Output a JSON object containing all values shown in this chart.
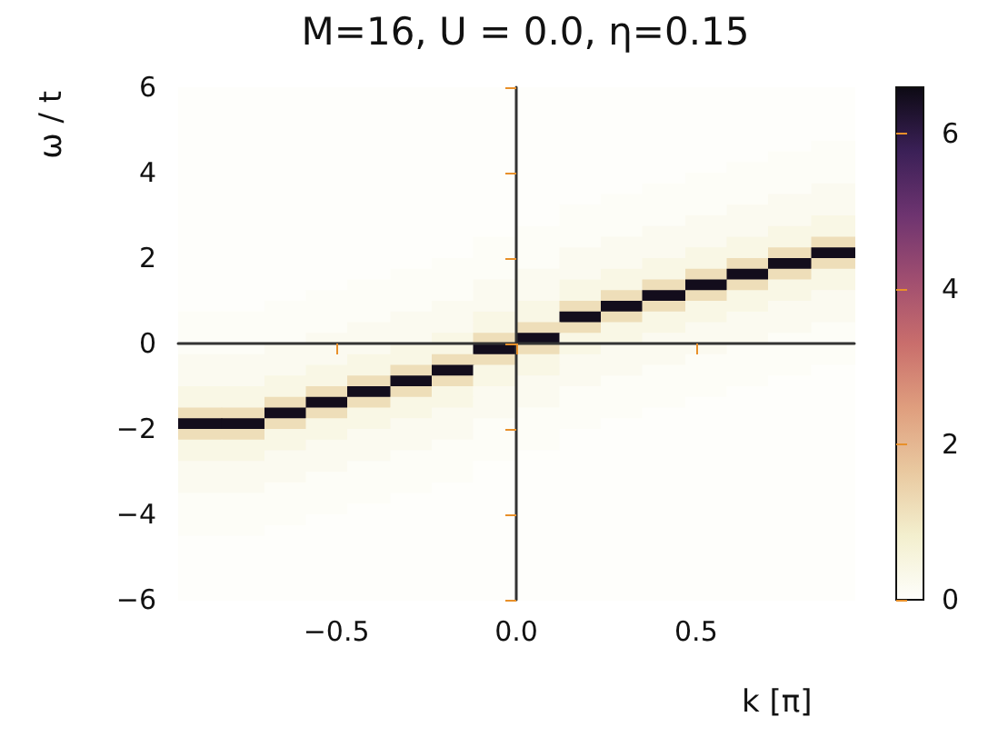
{
  "chart_data": {
    "type": "heatmap",
    "title": "M=16, U = 0.0, η=0.15",
    "xlabel": "k [π]",
    "ylabel": "ω / t",
    "x": [
      -0.88,
      -0.76,
      -0.64,
      -0.53,
      -0.41,
      -0.29,
      -0.18,
      -0.06,
      0.06,
      0.18,
      0.29,
      0.41,
      0.53,
      0.64,
      0.76,
      0.88
    ],
    "cells": [
      [
        0,
        0,
        0,
        0,
        0,
        0,
        0,
        0,
        0,
        0,
        0,
        0,
        0,
        0,
        0,
        0
      ],
      [
        0,
        0,
        0,
        0,
        0,
        0,
        0,
        0,
        0,
        0,
        0,
        0,
        0,
        0,
        0,
        0
      ],
      [
        0,
        0,
        0,
        0,
        0,
        0,
        0,
        0,
        0,
        0,
        0,
        0,
        0,
        0,
        0,
        0
      ],
      [
        0,
        0,
        0,
        0,
        0,
        0,
        0,
        0,
        0,
        0,
        0,
        0,
        0,
        0,
        0,
        0
      ],
      [
        0,
        0,
        0,
        0,
        0,
        0,
        0,
        0,
        0,
        0,
        0,
        0,
        0,
        0,
        0,
        0
      ],
      [
        0,
        0,
        0,
        0,
        0,
        0,
        0,
        0,
        0,
        0,
        0,
        0,
        0,
        0,
        0,
        0.08
      ],
      [
        0,
        0,
        0,
        0,
        0,
        0,
        0,
        0,
        0,
        0,
        0,
        0,
        0,
        0,
        0.08,
        0.08
      ],
      [
        0,
        0,
        0,
        0,
        0,
        0,
        0,
        0,
        0,
        0,
        0,
        0,
        0,
        0.08,
        0.08,
        0.08
      ],
      [
        0,
        0,
        0,
        0,
        0,
        0,
        0,
        0,
        0,
        0,
        0,
        0,
        0.08,
        0.08,
        0.08,
        0.08
      ],
      [
        0,
        0,
        0,
        0,
        0,
        0,
        0,
        0,
        0,
        0,
        0,
        0.08,
        0.08,
        0.08,
        0.08,
        0.2
      ],
      [
        0,
        0,
        0,
        0,
        0,
        0,
        0,
        0,
        0,
        0,
        0.08,
        0.08,
        0.08,
        0.08,
        0.2,
        0.2
      ],
      [
        0,
        0,
        0,
        0,
        0,
        0,
        0,
        0,
        0,
        0.08,
        0.08,
        0.08,
        0.08,
        0.2,
        0.2,
        0.2
      ],
      [
        0,
        0,
        0,
        0,
        0,
        0,
        0,
        0,
        0,
        0.08,
        0.08,
        0.08,
        0.2,
        0.2,
        0.2,
        0.4
      ],
      [
        0,
        0,
        0,
        0,
        0,
        0,
        0,
        0,
        0.08,
        0.08,
        0.08,
        0.2,
        0.2,
        0.2,
        0.4,
        0.4
      ],
      [
        0,
        0,
        0,
        0,
        0,
        0,
        0,
        0.08,
        0.08,
        0.08,
        0.2,
        0.2,
        0.2,
        0.4,
        0.4,
        1.2
      ],
      [
        0,
        0,
        0,
        0,
        0,
        0,
        0,
        0.08,
        0.08,
        0.2,
        0.2,
        0.2,
        0.4,
        0.4,
        1.2,
        6.5
      ],
      [
        0,
        0,
        0,
        0,
        0,
        0,
        0.08,
        0.08,
        0.08,
        0.2,
        0.2,
        0.4,
        0.4,
        1.2,
        6.5,
        1.2
      ],
      [
        0,
        0,
        0,
        0,
        0,
        0.08,
        0.08,
        0.08,
        0.2,
        0.2,
        0.4,
        0.4,
        1.2,
        6.5,
        1.2,
        0.4
      ],
      [
        0,
        0,
        0,
        0,
        0.08,
        0.08,
        0.08,
        0.2,
        0.2,
        0.4,
        0.4,
        1.2,
        6.5,
        1.2,
        0.4,
        0.4
      ],
      [
        0,
        0,
        0,
        0.08,
        0.08,
        0.08,
        0.08,
        0.2,
        0.2,
        0.4,
        1.2,
        6.5,
        1.2,
        0.4,
        0.4,
        0.2
      ],
      [
        0,
        0,
        0.08,
        0.08,
        0.08,
        0.08,
        0.2,
        0.2,
        0.4,
        1.2,
        6.5,
        1.2,
        0.4,
        0.4,
        0.2,
        0.2
      ],
      [
        0.08,
        0.08,
        0.08,
        0.08,
        0.08,
        0.2,
        0.2,
        0.4,
        0.4,
        6.5,
        1.2,
        0.4,
        0.4,
        0.2,
        0.2,
        0.2
      ],
      [
        0.08,
        0.08,
        0.08,
        0.08,
        0.2,
        0.2,
        0.2,
        0.4,
        1.2,
        1.2,
        0.4,
        0.4,
        0.2,
        0.2,
        0.2,
        0.08
      ],
      [
        0.08,
        0.08,
        0.08,
        0.2,
        0.2,
        0.2,
        0.4,
        1.2,
        6.5,
        0.4,
        0.4,
        0.2,
        0.2,
        0.2,
        0.08,
        0.08
      ],
      [
        0.08,
        0.08,
        0.2,
        0.2,
        0.2,
        0.4,
        0.4,
        6.5,
        1.2,
        0.4,
        0.2,
        0.2,
        0.2,
        0.08,
        0.08,
        0.08
      ],
      [
        0.2,
        0.2,
        0.2,
        0.2,
        0.4,
        0.4,
        1.2,
        1.2,
        0.4,
        0.2,
        0.2,
        0.2,
        0.08,
        0.08,
        0.08,
        0.08
      ],
      [
        0.2,
        0.2,
        0.2,
        0.4,
        0.4,
        1.2,
        6.5,
        0.4,
        0.4,
        0.2,
        0.2,
        0.08,
        0.08,
        0.08,
        0.08,
        0
      ],
      [
        0.2,
        0.2,
        0.4,
        0.4,
        1.2,
        6.5,
        1.2,
        0.4,
        0.2,
        0.2,
        0.08,
        0.08,
        0.08,
        0.08,
        0,
        0
      ],
      [
        0.4,
        0.4,
        0.4,
        1.2,
        6.5,
        1.2,
        0.4,
        0.2,
        0.2,
        0.08,
        0.08,
        0.08,
        0.08,
        0,
        0,
        0
      ],
      [
        0.4,
        0.4,
        1.2,
        6.5,
        1.2,
        0.4,
        0.4,
        0.2,
        0.2,
        0.08,
        0.08,
        0.08,
        0,
        0,
        0,
        0
      ],
      [
        1.2,
        1.2,
        6.5,
        1.2,
        0.4,
        0.4,
        0.2,
        0.2,
        0.08,
        0.08,
        0.08,
        0,
        0,
        0,
        0,
        0
      ],
      [
        6.5,
        6.5,
        1.2,
        0.4,
        0.4,
        0.2,
        0.2,
        0.08,
        0.08,
        0.08,
        0,
        0,
        0,
        0,
        0,
        0
      ],
      [
        1.2,
        1.2,
        0.4,
        0.4,
        0.2,
        0.2,
        0.2,
        0.08,
        0.08,
        0,
        0,
        0,
        0,
        0,
        0,
        0
      ],
      [
        0.4,
        0.4,
        0.4,
        0.2,
        0.2,
        0.2,
        0.08,
        0.08,
        0.08,
        0,
        0,
        0,
        0,
        0,
        0,
        0
      ],
      [
        0.4,
        0.4,
        0.2,
        0.2,
        0.2,
        0.08,
        0.08,
        0.08,
        0,
        0,
        0,
        0,
        0,
        0,
        0,
        0
      ],
      [
        0.2,
        0.2,
        0.2,
        0.2,
        0.08,
        0.08,
        0.08,
        0,
        0,
        0,
        0,
        0,
        0,
        0,
        0,
        0
      ],
      [
        0.2,
        0.2,
        0.2,
        0.08,
        0.08,
        0.08,
        0.08,
        0,
        0,
        0,
        0,
        0,
        0,
        0,
        0,
        0
      ],
      [
        0.2,
        0.2,
        0.08,
        0.08,
        0.08,
        0.08,
        0,
        0,
        0,
        0,
        0,
        0,
        0,
        0,
        0,
        0
      ],
      [
        0.08,
        0.08,
        0.08,
        0.08,
        0.08,
        0,
        0,
        0,
        0,
        0,
        0,
        0,
        0,
        0,
        0,
        0
      ],
      [
        0.08,
        0.08,
        0.08,
        0.08,
        0,
        0,
        0,
        0,
        0,
        0,
        0,
        0,
        0,
        0,
        0,
        0
      ],
      [
        0.08,
        0.08,
        0.08,
        0,
        0,
        0,
        0,
        0,
        0,
        0,
        0,
        0,
        0,
        0,
        0,
        0
      ],
      [
        0.08,
        0.08,
        0,
        0,
        0,
        0,
        0,
        0,
        0,
        0,
        0,
        0,
        0,
        0,
        0,
        0
      ],
      [
        0,
        0,
        0,
        0,
        0,
        0,
        0,
        0,
        0,
        0,
        0,
        0,
        0,
        0,
        0,
        0
      ],
      [
        0,
        0,
        0,
        0,
        0,
        0,
        0,
        0,
        0,
        0,
        0,
        0,
        0,
        0,
        0,
        0
      ],
      [
        0,
        0,
        0,
        0,
        0,
        0,
        0,
        0,
        0,
        0,
        0,
        0,
        0,
        0,
        0,
        0
      ],
      [
        0,
        0,
        0,
        0,
        0,
        0,
        0,
        0,
        0,
        0,
        0,
        0,
        0,
        0,
        0,
        0
      ],
      [
        0,
        0,
        0,
        0,
        0,
        0,
        0,
        0,
        0,
        0,
        0,
        0,
        0,
        0,
        0,
        0
      ],
      [
        0,
        0,
        0,
        0,
        0,
        0,
        0,
        0,
        0,
        0,
        0,
        0,
        0,
        0,
        0,
        0
      ]
    ],
    "xlim": [
      -0.94,
      0.94
    ],
    "xticks": [
      {
        "value": -0.5,
        "label": "−0.5"
      },
      {
        "value": 0,
        "label": "0.0"
      },
      {
        "value": 0.5,
        "label": "0.5"
      }
    ],
    "ylim": [
      -6,
      6
    ],
    "yticks": [
      {
        "value": -6,
        "label": "−6"
      },
      {
        "value": -4,
        "label": "−4"
      },
      {
        "value": -2,
        "label": "−2"
      },
      0,
      2,
      4,
      6
    ],
    "clim": [
      0,
      6.6
    ],
    "cticks": [
      0,
      2,
      4,
      6
    ]
  }
}
